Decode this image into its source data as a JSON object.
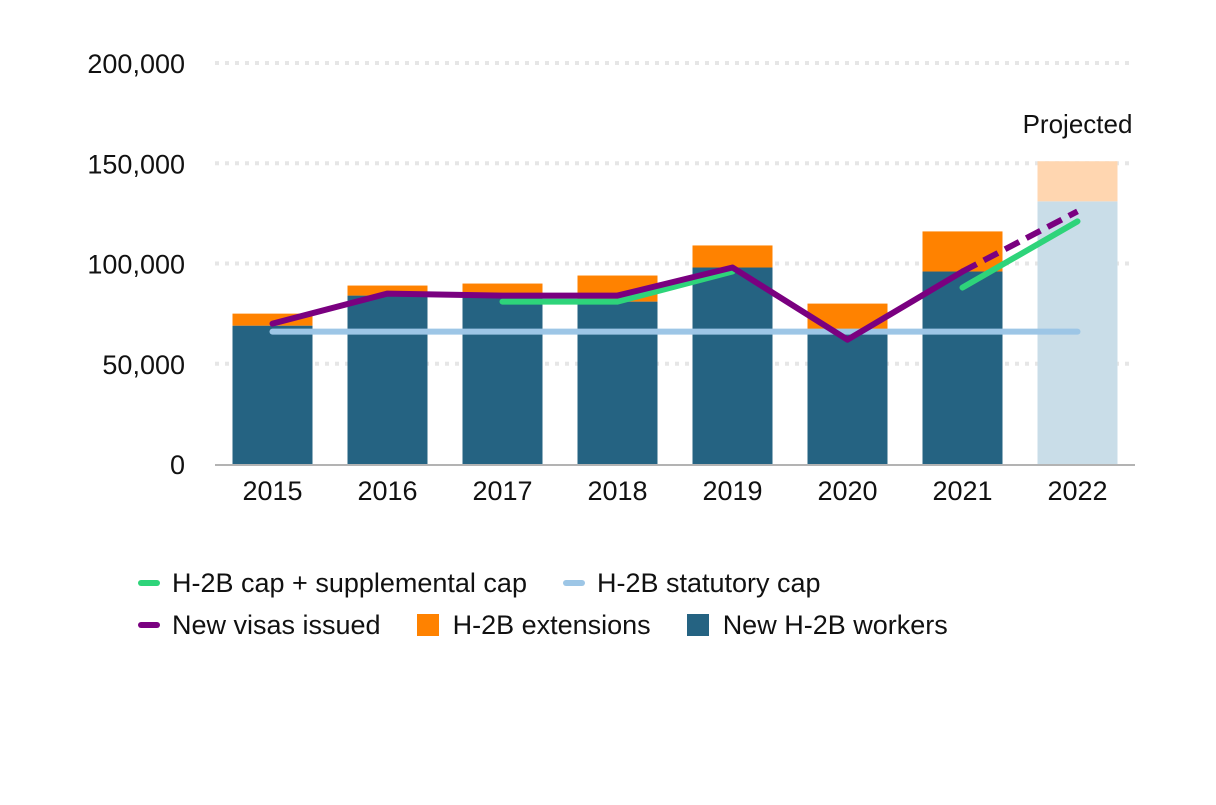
{
  "chart_data": {
    "type": "bar",
    "title": "",
    "xlabel": "",
    "ylabel": "",
    "ylim": [
      0,
      200000
    ],
    "yticks": [
      0,
      50000,
      100000,
      150000,
      200000
    ],
    "ytick_labels": [
      "0",
      "50,000",
      "100,000",
      "150,000",
      "200,000"
    ],
    "grid": true,
    "categories": [
      "2015",
      "2016",
      "2017",
      "2018",
      "2019",
      "2020",
      "2021",
      "2022"
    ],
    "projected_category": "2022",
    "annotation": "Projected",
    "stacked_series": [
      {
        "name": "New H-2B workers",
        "color": "#256382",
        "projected_color": "#c9dde8",
        "values": [
          69000,
          84000,
          83000,
          81000,
          98000,
          67000,
          96000,
          131000
        ]
      },
      {
        "name": "H-2B extensions",
        "color": "#ff8200",
        "projected_color": "#ffd6b0",
        "values": [
          6000,
          5000,
          7000,
          13000,
          11000,
          13000,
          20000,
          20000
        ]
      }
    ],
    "line_series": [
      {
        "name": "H-2B cap + supplemental cap",
        "color": "#2ed47a",
        "values": [
          null,
          null,
          81000,
          81000,
          96000,
          null,
          88000,
          121000
        ],
        "dashed_from": null
      },
      {
        "name": "H-2B statutory cap",
        "color": "#9dc6e6",
        "values": [
          66000,
          66000,
          66000,
          66000,
          66000,
          66000,
          66000,
          66000
        ],
        "dashed_from": null
      },
      {
        "name": "New visas issued",
        "color": "#7a0080",
        "values": [
          70000,
          85000,
          84000,
          84000,
          98000,
          62000,
          96000,
          126000
        ],
        "dashed_from": "2021"
      }
    ],
    "legend": {
      "placement": "bottom",
      "rows": [
        [
          {
            "label": "H-2B cap + supplemental cap",
            "kind": "line",
            "color": "#2ed47a"
          },
          {
            "label": "H-2B statutory cap",
            "kind": "line",
            "color": "#9dc6e6"
          }
        ],
        [
          {
            "label": "New visas issued",
            "kind": "line",
            "color": "#7a0080"
          },
          {
            "label": "H-2B extensions",
            "kind": "box",
            "color": "#ff8200"
          },
          {
            "label": "New H-2B workers",
            "kind": "box",
            "color": "#256382"
          }
        ]
      ]
    }
  }
}
